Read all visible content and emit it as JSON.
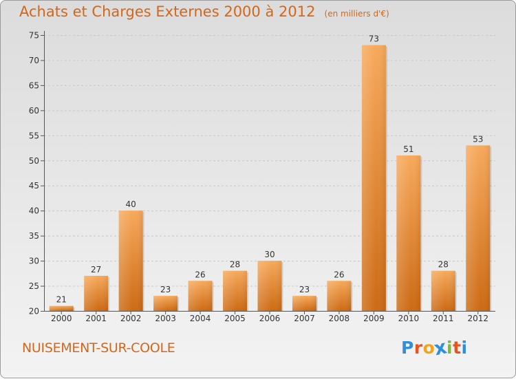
{
  "header": {
    "title": "Achats et Charges Externes 2000 à 2012",
    "subtitle": "(en milliers d'€)"
  },
  "footer": {
    "commune": "NUISEMENT-SUR-COOLE",
    "brand": "Proxiti",
    "brand_colors": [
      "#2f8fd8",
      "#e8541c",
      "#f2a41a",
      "#2f8fd8",
      "#7cb83a",
      "#e8541c",
      "#2f8fd8"
    ]
  },
  "colors": {
    "accent": "#d4661a",
    "bar_light": "#f7a95b",
    "bar_dark": "#cc6a14"
  },
  "chart_data": {
    "type": "bar",
    "categories": [
      "2000",
      "2001",
      "2002",
      "2003",
      "2004",
      "2005",
      "2006",
      "2007",
      "2008",
      "2009",
      "2010",
      "2011",
      "2012"
    ],
    "values": [
      21,
      27,
      40,
      23,
      26,
      28,
      30,
      23,
      26,
      73,
      51,
      28,
      53
    ],
    "title": "Achats et Charges Externes 2000 à 2012",
    "subtitle": "(en milliers d'€)",
    "xlabel": "",
    "ylabel": "",
    "ylim": [
      20,
      75
    ],
    "yticks": [
      20,
      25,
      30,
      35,
      40,
      45,
      50,
      55,
      60,
      65,
      70,
      75
    ],
    "grid": true,
    "show_data_labels": true
  }
}
